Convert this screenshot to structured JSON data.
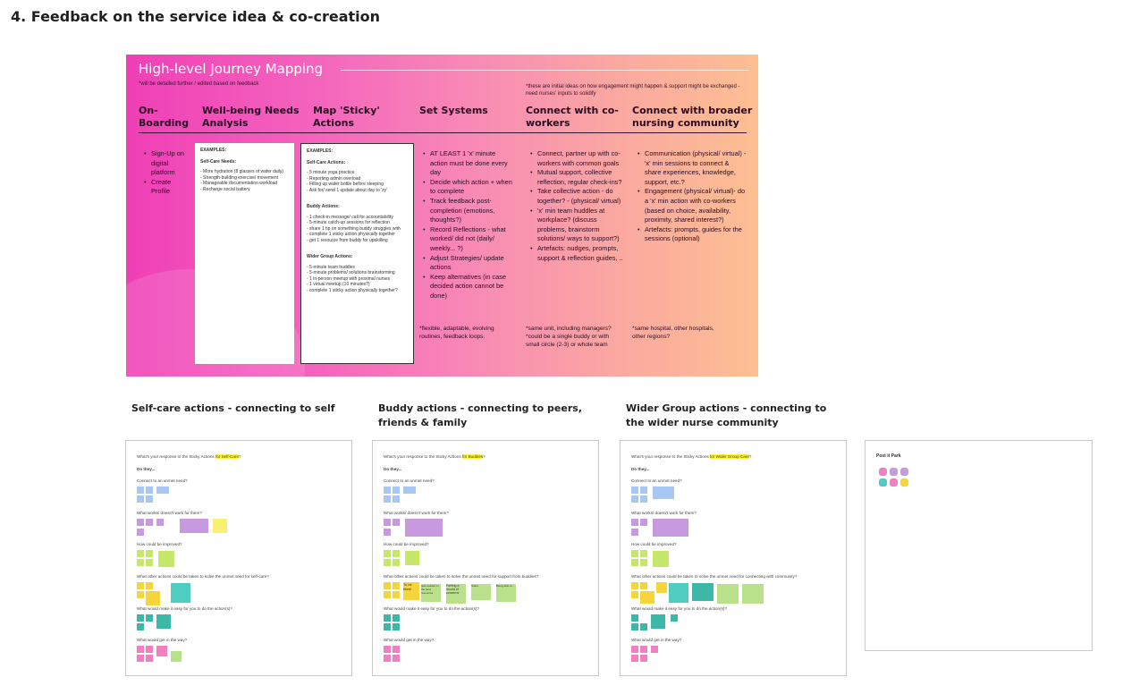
{
  "page_title": "4. Feedback on the service idea & co-creation",
  "journey": {
    "title": "High-level Journey Mapping",
    "subtitle": "*will be detailed further / edited based on feedback",
    "note": "*these are initial ideas on how engagement might happen & support might be exchanged - need nurses' inputs to solidify",
    "columns": [
      {
        "title": "On-\nBoarding"
      },
      {
        "title": "Well-being Needs\nAnalysis"
      },
      {
        "title": "Map 'Sticky'\nActions"
      },
      {
        "title": "Set Systems"
      },
      {
        "title": "Connect with co-\nworkers"
      },
      {
        "title": "Connect with broader\nnursing community"
      }
    ],
    "onboarding_items": [
      "Sign-Up on digital platform",
      "Create Profile"
    ],
    "needs_box": {
      "heading": "EXAMPLES:",
      "sub": "Self-Care Needs:",
      "items": [
        "- More hydration (8 glasses of water daily)",
        "- Strength-building exercise/ movement",
        "- Manageable documentation workload",
        "- Recharge social battery"
      ]
    },
    "actions_box": {
      "heading": "EXAMPLES:",
      "groups": [
        {
          "title": "Self-Care Actions:",
          "items": [
            "- 5 minute yoga practice",
            "- Reporting admin overload",
            "- Filling up water bottle before sleeping",
            "- Ask for/ send 1 update about day to 'zy'"
          ]
        },
        {
          "title": "Buddy Actions:",
          "items": [
            "- 1 check-in message/ call for accountability",
            "- 5-minute catch-up sessions for reflection",
            "- share 1 tip on something buddy struggles with",
            "- complete 1 sticky action physically together",
            "- get 1 resource from buddy for upskilling"
          ]
        },
        {
          "title": "Wider Group Actions:",
          "items": [
            "- 5-minute team huddles",
            "- 5-minute problems/ solutions brainstorming",
            "- 1 in-person meetup with proximal nurses",
            "- 1 virtual meetup (10 minutes?)",
            "- complete 1 sticky action physically together?"
          ]
        }
      ]
    },
    "systems_items": [
      "AT LEAST 1 'x' minute action must be done every day",
      "Decide which action + when to complete",
      "Track feedback post-completion (emotions, thoughts?)",
      "Record Reflections - what worked/ did not (daily/ weekly... ?)",
      "Adjust Strategies/ update actions",
      "Keep alternatives (in case decided action cannot be done)"
    ],
    "systems_foot": "*flexible, adaptable, evolving routines, feedback loops.",
    "coworkers_items": [
      "Connect, partner up with co-workers with common goals",
      "Mutual support, collective reflection, regular check-ins?",
      "Take collective action - do together? - (physical/ virtual)",
      "'x' min team huddles at workplace? (discuss problems, brainstorm solutions/ ways to support?)",
      "Artefacts: nudges, prompts, support & reflection guides, .."
    ],
    "coworkers_foot": "*same unit, including managers?\n*could be a single buddy or with small circle (2-3) or whole team",
    "community_items": [
      "Communication (physical/ virtual) - 'x' min sessions to connect & share experiences, knowledge, support, etc.?",
      "Engagement (physical/ virtual)- do a 'x' min action with co-workers (based on choice, availability, proximity, shared interest?)",
      "Artefacts: prompts, guides for the sessions (optional)"
    ],
    "community_foot": "*same hospital, other hospitals, other regions?"
  },
  "sections": {
    "self": "Self-care actions - connecting to self",
    "buddy": "Buddy actions - connecting to peers, friends & family",
    "wider": "Wider Group actions - connecting to the wider nurse community"
  },
  "boards": {
    "self": {
      "q_prefix": "What's your response to the Sticky Actions ",
      "q_hl": "for Self-Care",
      "q_suffix": "?",
      "unmet": "What other actions could be taken to solve the unmet need for self-care?"
    },
    "buddy": {
      "q_prefix": "What's your response to the Sticky Actions ",
      "q_hl": "for Buddies",
      "q_suffix": "?",
      "unmet": "What other actions could be taken to solve the unmet need for support from buddies?"
    },
    "wider": {
      "q_prefix": "What's your response to the Sticky Actions ",
      "q_hl": "for Wider Group Care",
      "q_suffix": "?",
      "unmet": "What other actions could be taken to solve the unmet need for connecting with community?"
    },
    "common": {
      "do_they": "Do they...",
      "connect": "Connect to an unmet need?",
      "works": "What works/ doesn't work for them?",
      "improved": "How could be improved?",
      "easy": "What would make it easy for you to do the action(s)?",
      "way": "What would get in the way?"
    },
    "park_title": "Post it Park",
    "buddy_notes": [
      "To be liked!",
      "gets quicker to the best resources",
      "Feeling a record of concerns",
      "Share",
      "Being able to..."
    ]
  }
}
